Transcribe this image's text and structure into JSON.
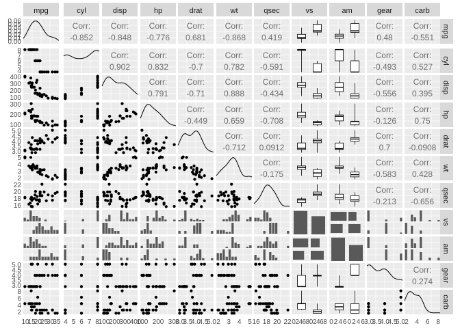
{
  "chart_data": {
    "type": "scatter-matrix",
    "variables": [
      "mpg",
      "cyl",
      "disp",
      "hp",
      "drat",
      "wt",
      "qsec",
      "vs",
      "am",
      "gear",
      "carb"
    ],
    "corr_label": "Corr:",
    "correlations": {
      "0": {
        "1": "-0.852",
        "2": "-0.848",
        "3": "-0.776",
        "4": "0.681",
        "5": "-0.868",
        "6": "0.419",
        "9": "0.48",
        "10": "-0.551"
      },
      "1": {
        "2": "0.902",
        "3": "0.832",
        "4": "-0.7",
        "5": "0.782",
        "6": "-0.591",
        "9": "-0.493",
        "10": "0.527"
      },
      "2": {
        "3": "0.791",
        "4": "-0.71",
        "5": "0.888",
        "6": "-0.434",
        "9": "-0.556",
        "10": "0.395"
      },
      "3": {
        "4": "-0.449",
        "5": "0.659",
        "6": "-0.708",
        "9": "-0.126",
        "10": "0.75"
      },
      "4": {
        "5": "-0.712",
        "6": "0.0912",
        "9": "0.7",
        "10": "-0.0908"
      },
      "5": {
        "6": "-0.175",
        "9": "-0.583",
        "10": "0.428"
      },
      "6": {
        "9": "-0.213",
        "10": "-0.656"
      },
      "9": {
        "10": "0.274"
      }
    },
    "left_ticks": [
      [
        "0.06",
        "0.05",
        "0.04",
        "0.03",
        "0.02",
        "0.01",
        "0.00"
      ],
      [
        "8",
        "7",
        "6",
        "5",
        "4"
      ],
      [
        "400",
        "300",
        "200",
        "100"
      ],
      [
        "300",
        "200",
        "100"
      ],
      [
        "5.0",
        "4.5",
        "4.0",
        "3.5",
        "3.0"
      ],
      [
        "5",
        "4",
        "3",
        "2"
      ],
      [
        "22",
        "20",
        "18",
        "16"
      ],
      [
        "",
        "",
        "",
        "",
        ""
      ],
      [
        "",
        "",
        "",
        "",
        ""
      ],
      [
        "5.0",
        "4.5",
        "4.0",
        "3.5",
        "3.0"
      ],
      [
        "8",
        "6",
        "4",
        "2"
      ]
    ],
    "bottom_ticks": [
      [
        "10",
        "15",
        "20",
        "25",
        "30",
        "35"
      ],
      [
        "4",
        "5",
        "6",
        "7",
        "8"
      ],
      [
        "100",
        "200",
        "300",
        "400"
      ],
      [
        "100",
        "200",
        "300"
      ],
      [
        "3.0",
        "3.5",
        "4.0",
        "4.5",
        "5.0"
      ],
      [
        "2",
        "3",
        "4",
        "5"
      ],
      [
        "16",
        "18",
        "20",
        "22"
      ],
      [
        "0",
        "2",
        "4",
        "6",
        "8",
        "0",
        "2",
        "4",
        "6",
        "8"
      ],
      [
        "0",
        "2",
        "4",
        "6",
        "0",
        "2",
        "4",
        "6"
      ],
      [
        "3.0",
        "3.5",
        "4.0",
        "4.5",
        "5.0"
      ],
      [
        "2",
        "4",
        "6",
        "8"
      ]
    ],
    "data": {
      "mpg": [
        21,
        21,
        22.8,
        21.4,
        18.7,
        18.1,
        14.3,
        24.4,
        22.8,
        19.2,
        17.8,
        16.4,
        17.3,
        15.2,
        10.4,
        10.4,
        14.7,
        32.4,
        30.4,
        33.9,
        21.5,
        15.5,
        15.2,
        13.3,
        19.2,
        27.3,
        26,
        30.4,
        15.8,
        19.7,
        15,
        21.4
      ],
      "cyl": [
        6,
        6,
        4,
        6,
        8,
        6,
        8,
        4,
        4,
        6,
        6,
        8,
        8,
        8,
        8,
        8,
        8,
        4,
        4,
        4,
        4,
        8,
        8,
        8,
        8,
        4,
        4,
        4,
        8,
        6,
        8,
        4
      ],
      "disp": [
        160,
        160,
        108,
        258,
        360,
        225,
        360,
        146.7,
        140.8,
        167.6,
        167.6,
        275.8,
        275.8,
        275.8,
        472,
        460,
        440,
        78.7,
        75.7,
        71.1,
        120.1,
        318,
        304,
        350,
        400,
        79,
        120.3,
        95.1,
        351,
        145,
        301,
        121
      ],
      "hp": [
        110,
        110,
        93,
        110,
        175,
        105,
        245,
        62,
        95,
        123,
        123,
        180,
        180,
        180,
        205,
        215,
        230,
        66,
        52,
        65,
        97,
        150,
        150,
        245,
        175,
        66,
        91,
        113,
        264,
        175,
        335,
        109
      ],
      "drat": [
        3.9,
        3.9,
        3.85,
        3.08,
        3.15,
        2.76,
        3.21,
        3.69,
        3.92,
        3.92,
        3.92,
        3.07,
        3.07,
        3.07,
        2.93,
        3,
        3.23,
        4.08,
        4.93,
        4.22,
        3.7,
        2.76,
        3.15,
        3.73,
        3.08,
        4.08,
        4.43,
        3.77,
        4.22,
        3.62,
        3.54,
        4.11
      ],
      "wt": [
        2.62,
        2.875,
        2.32,
        3.215,
        3.44,
        3.46,
        3.57,
        3.19,
        3.15,
        3.44,
        3.44,
        4.07,
        3.73,
        3.78,
        5.25,
        5.424,
        5.345,
        2.2,
        1.615,
        1.835,
        2.465,
        3.52,
        3.435,
        3.84,
        3.845,
        1.935,
        2.14,
        1.513,
        3.17,
        2.77,
        3.57,
        2.78
      ],
      "qsec": [
        16.46,
        17.02,
        18.61,
        19.44,
        17.02,
        20.22,
        15.84,
        20,
        22.9,
        18.3,
        18.9,
        17.4,
        17.6,
        18,
        17.98,
        17.82,
        17.42,
        19.47,
        18.52,
        19.9,
        20.01,
        16.87,
        17.3,
        15.41,
        17.05,
        18.9,
        16.7,
        16.9,
        14.5,
        15.5,
        14.6,
        18.6
      ],
      "vs": [
        0,
        0,
        1,
        1,
        0,
        1,
        0,
        1,
        1,
        1,
        1,
        0,
        0,
        0,
        0,
        0,
        0,
        1,
        1,
        1,
        1,
        0,
        0,
        0,
        0,
        1,
        0,
        1,
        0,
        0,
        0,
        1
      ],
      "am": [
        1,
        1,
        1,
        0,
        0,
        0,
        0,
        0,
        0,
        0,
        0,
        0,
        0,
        0,
        0,
        0,
        0,
        1,
        1,
        1,
        0,
        0,
        0,
        0,
        0,
        1,
        1,
        1,
        1,
        1,
        1,
        1
      ],
      "gear": [
        4,
        4,
        4,
        3,
        3,
        3,
        3,
        4,
        4,
        4,
        4,
        3,
        3,
        3,
        3,
        3,
        3,
        4,
        4,
        4,
        3,
        3,
        3,
        3,
        3,
        4,
        5,
        5,
        5,
        5,
        5,
        4
      ],
      "carb": [
        4,
        4,
        1,
        1,
        2,
        1,
        4,
        2,
        2,
        4,
        4,
        3,
        3,
        3,
        4,
        4,
        4,
        1,
        2,
        1,
        1,
        2,
        2,
        4,
        2,
        1,
        2,
        2,
        4,
        6,
        8,
        2
      ]
    },
    "panel_types": {
      "lower": "scatter",
      "diagonal": "density",
      "upper": "correlation",
      "with_binary_column": "boxplot",
      "binary_row": "histogram",
      "binary_diagonal": "bar"
    },
    "grid": true
  },
  "colors": {
    "strip_fill": "#d9d9d9",
    "panel_fill": "#ebebeb",
    "grid_major": "#ffffff",
    "mark": "#000000",
    "bar_fill": "#595959",
    "corr_text": "#6b6b6b"
  }
}
